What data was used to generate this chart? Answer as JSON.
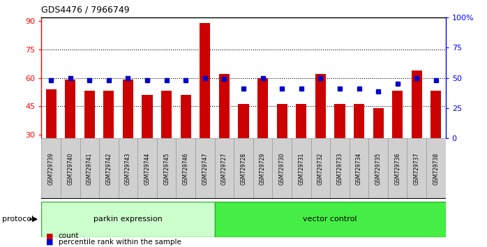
{
  "title": "GDS4476 / 7966749",
  "samples": [
    "GSM729739",
    "GSM729740",
    "GSM729741",
    "GSM729742",
    "GSM729743",
    "GSM729744",
    "GSM729745",
    "GSM729746",
    "GSM729747",
    "GSM729727",
    "GSM729728",
    "GSM729729",
    "GSM729730",
    "GSM729731",
    "GSM729732",
    "GSM729733",
    "GSM729734",
    "GSM729735",
    "GSM729736",
    "GSM729737",
    "GSM729738"
  ],
  "count_values": [
    54,
    59,
    53,
    53,
    59,
    51,
    53,
    51,
    89,
    62,
    46,
    60,
    46,
    46,
    62,
    46,
    46,
    44,
    53,
    64,
    53
  ],
  "percentile_values": [
    48,
    50,
    48,
    48,
    50,
    48,
    48,
    48,
    50,
    49,
    41,
    50,
    41,
    41,
    50,
    41,
    41,
    39,
    45,
    50,
    48
  ],
  "group1_label": "parkin expression",
  "group2_label": "vector control",
  "group1_count": 9,
  "group2_count": 12,
  "group1_color": "#ccffcc",
  "group2_color": "#44ee44",
  "bar_color": "#cc0000",
  "dot_color": "#0000cc",
  "left_yticks": [
    30,
    45,
    60,
    75,
    90
  ],
  "right_yticks": [
    0,
    25,
    50,
    75,
    100
  ],
  "ylim_left": [
    28,
    92
  ],
  "ylim_right": [
    0,
    100
  ],
  "protocol_label": "protocol",
  "legend_count_label": "count",
  "legend_pct_label": "percentile rank within the sample"
}
